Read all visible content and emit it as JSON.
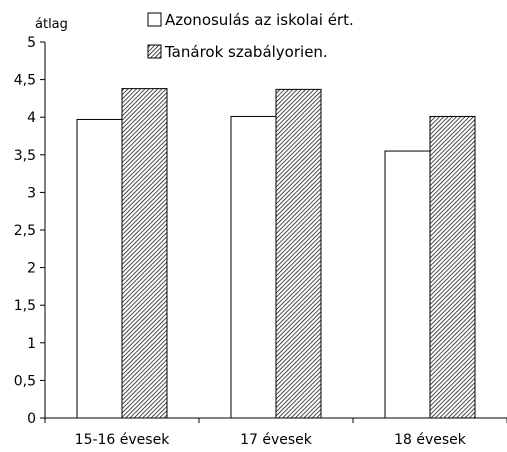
{
  "chart_data": {
    "type": "bar",
    "ylabel": "átlag",
    "xlabel": "",
    "ylim": [
      0,
      5
    ],
    "y_ticks": [
      {
        "value": 0,
        "label": "0"
      },
      {
        "value": 0.5,
        "label": "0,5"
      },
      {
        "value": 1,
        "label": "1"
      },
      {
        "value": 1.5,
        "label": "1,5"
      },
      {
        "value": 2,
        "label": "2"
      },
      {
        "value": 2.5,
        "label": "2,5"
      },
      {
        "value": 3,
        "label": "3"
      },
      {
        "value": 3.5,
        "label": "3,5"
      },
      {
        "value": 4,
        "label": "4"
      },
      {
        "value": 4.5,
        "label": "4,5"
      },
      {
        "value": 5,
        "label": "5"
      }
    ],
    "categories": [
      "15-16 évesek",
      "17 évesek",
      "18 évesek"
    ],
    "series": [
      {
        "name": "Azonosulás az iskolai ért.",
        "values": [
          3.97,
          4.01,
          3.55
        ],
        "fill": "#ffffff"
      },
      {
        "name": "Tanárok szabályorien.",
        "values": [
          4.38,
          4.37,
          4.01
        ],
        "fill": "hatched"
      }
    ],
    "legend_position": "top",
    "grid": false
  }
}
